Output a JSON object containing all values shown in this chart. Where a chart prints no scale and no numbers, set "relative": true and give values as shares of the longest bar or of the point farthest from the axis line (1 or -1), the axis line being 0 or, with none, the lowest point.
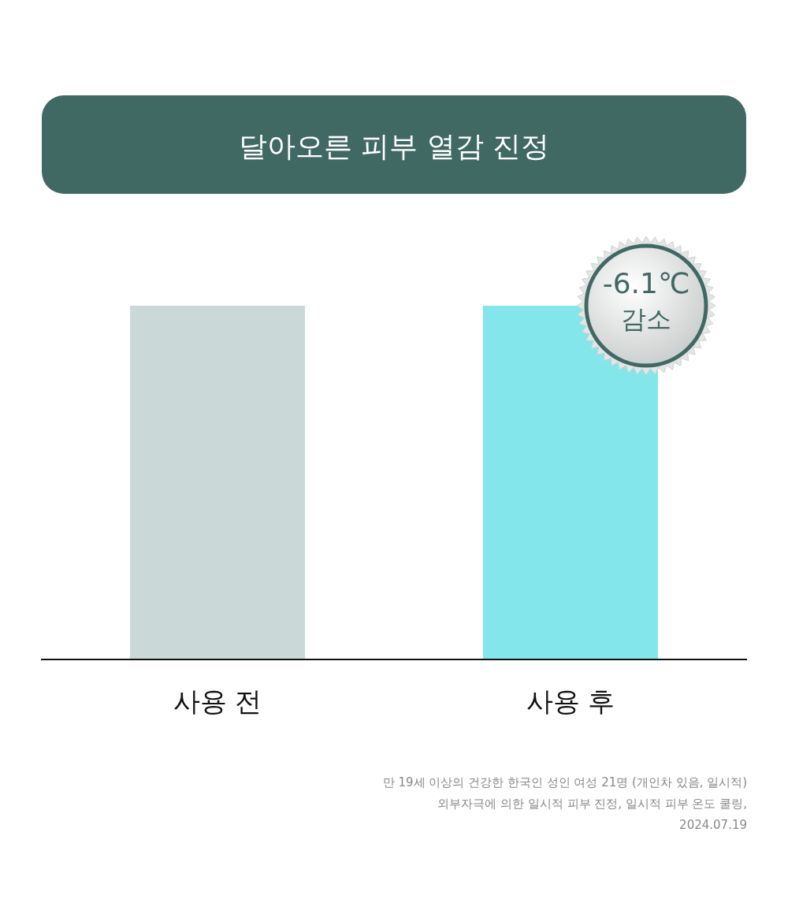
{
  "chart_data": {
    "type": "bar",
    "title": "달아오른 피부 열감 진정",
    "categories": [
      "사용 전",
      "사용 후"
    ],
    "values": [
      1,
      1
    ],
    "colors": [
      "#cad9d8",
      "#82e6ea"
    ],
    "relative": true,
    "annotations": [
      "-6.1℃\n감소",
      "만 19세 이상의 건강한 한국인 성인 여성 21명 (개인차 있음, 일시적)",
      "외부자극에 의한 일시적 피부 진정, 일시적 피부 온도 쿨링,",
      "2024.07.19"
    ]
  }
}
